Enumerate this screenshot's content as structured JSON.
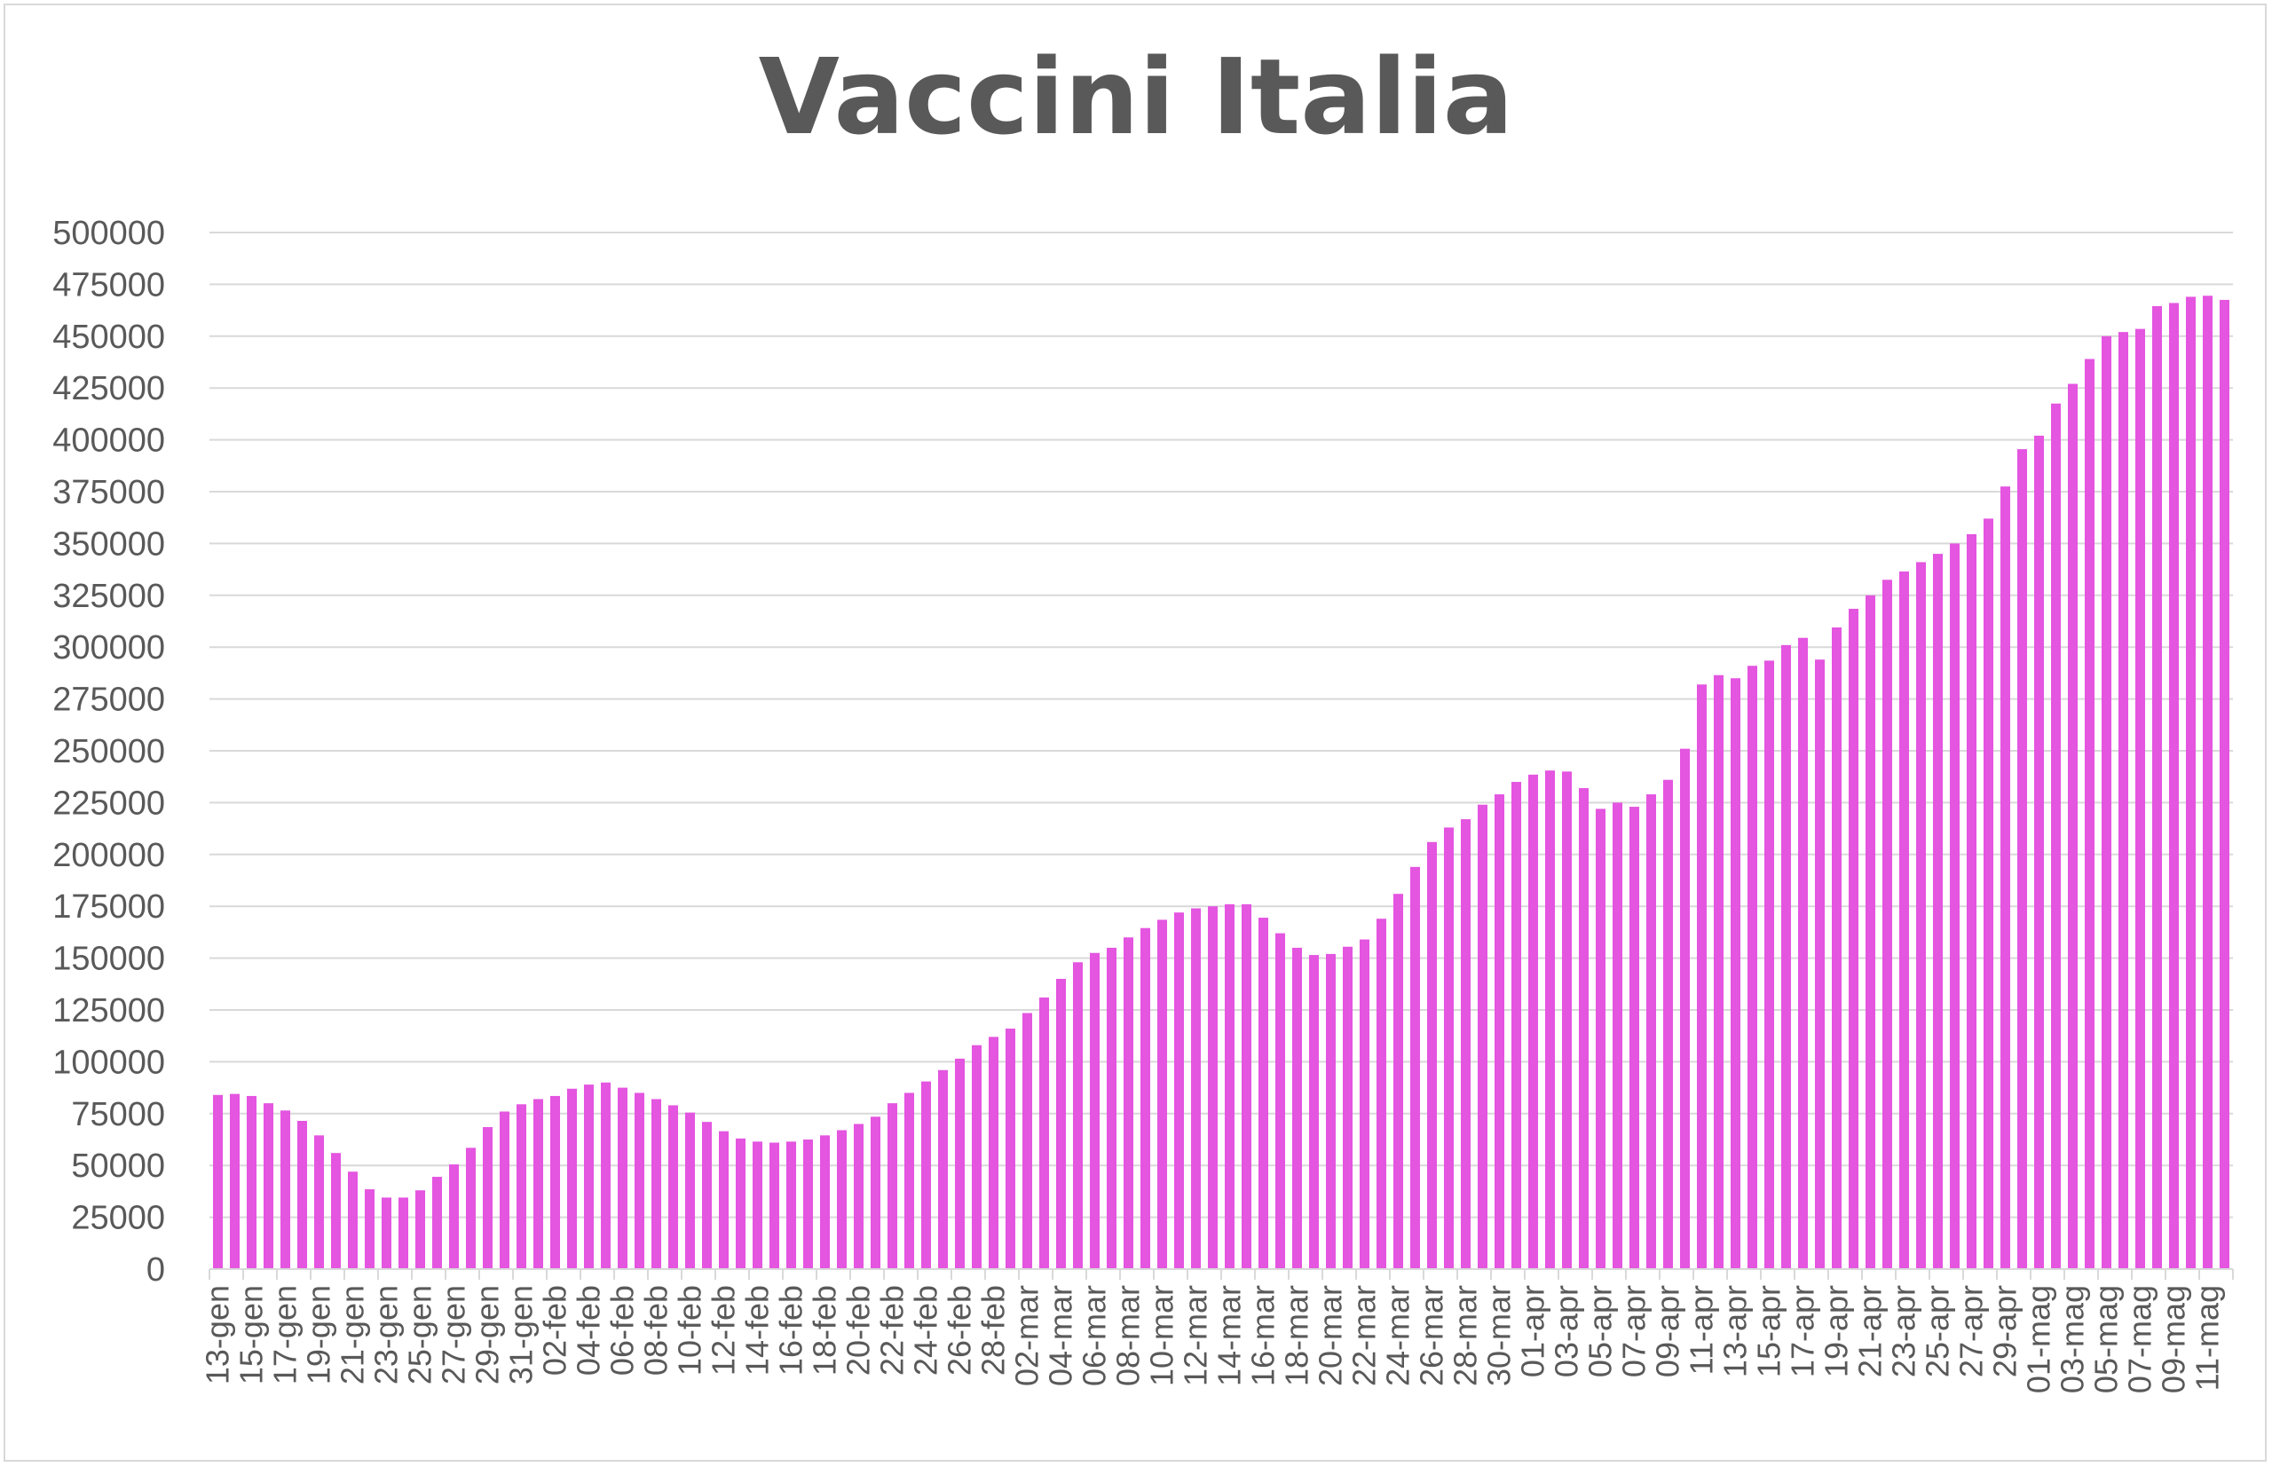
{
  "chart_data": {
    "type": "bar",
    "title": "Vaccini Italia",
    "xlabel": "",
    "ylabel": "",
    "ylim": [
      0,
      500000
    ],
    "yticks": [
      0,
      25000,
      50000,
      75000,
      100000,
      125000,
      150000,
      175000,
      200000,
      225000,
      250000,
      275000,
      300000,
      325000,
      350000,
      375000,
      400000,
      425000,
      450000,
      475000,
      500000
    ],
    "grid": true,
    "legend": "none",
    "bar_color": "#e455e0",
    "categories": [
      "13-gen",
      "14-gen",
      "15-gen",
      "16-gen",
      "17-gen",
      "18-gen",
      "19-gen",
      "20-gen",
      "21-gen",
      "22-gen",
      "23-gen",
      "24-gen",
      "25-gen",
      "26-gen",
      "27-gen",
      "28-gen",
      "29-gen",
      "30-gen",
      "31-gen",
      "01-feb",
      "02-feb",
      "03-feb",
      "04-feb",
      "05-feb",
      "06-feb",
      "07-feb",
      "08-feb",
      "09-feb",
      "10-feb",
      "11-feb",
      "12-feb",
      "13-feb",
      "14-feb",
      "15-feb",
      "16-feb",
      "17-feb",
      "18-feb",
      "19-feb",
      "20-feb",
      "21-feb",
      "22-feb",
      "23-feb",
      "24-feb",
      "25-feb",
      "26-feb",
      "27-feb",
      "28-feb",
      "01-mar",
      "02-mar",
      "03-mar",
      "04-mar",
      "05-mar",
      "06-mar",
      "07-mar",
      "08-mar",
      "09-mar",
      "10-mar",
      "11-mar",
      "12-mar",
      "13-mar",
      "14-mar",
      "15-mar",
      "16-mar",
      "17-mar",
      "18-mar",
      "19-mar",
      "20-mar",
      "21-mar",
      "22-mar",
      "23-mar",
      "24-mar",
      "25-mar",
      "26-mar",
      "27-mar",
      "28-mar",
      "29-mar",
      "30-mar",
      "31-mar",
      "01-apr",
      "02-apr",
      "03-apr",
      "04-apr",
      "05-apr",
      "06-apr",
      "07-apr",
      "08-apr",
      "09-apr",
      "10-apr",
      "11-apr",
      "12-apr",
      "13-apr",
      "14-apr",
      "15-apr",
      "16-apr",
      "17-apr",
      "18-apr",
      "19-apr",
      "20-apr",
      "21-apr",
      "22-apr",
      "23-apr",
      "24-apr",
      "25-apr",
      "26-apr",
      "27-apr",
      "28-apr",
      "29-apr",
      "30-apr",
      "01-mag",
      "02-mag",
      "03-mag",
      "04-mag",
      "05-mag",
      "06-mag",
      "07-mag",
      "08-mag",
      "09-mag",
      "10-mag",
      "11-mag",
      "12-mag"
    ],
    "values": [
      84000,
      84500,
      83500,
      80000,
      76500,
      71500,
      64500,
      56000,
      47000,
      38500,
      34500,
      34500,
      38000,
      44500,
      50500,
      58500,
      68500,
      76000,
      79500,
      82000,
      83500,
      87000,
      89000,
      90000,
      87500,
      85000,
      82000,
      79000,
      75500,
      71000,
      66500,
      63000,
      61500,
      61000,
      61500,
      62500,
      64500,
      67000,
      70000,
      73500,
      80000,
      85000,
      90500,
      96000,
      101500,
      108000,
      112000,
      116000,
      123500,
      131000,
      140000,
      148000,
      152500,
      155000,
      160000,
      164500,
      168500,
      172000,
      174000,
      175000,
      176000,
      176000,
      169500,
      162000,
      155000,
      151500,
      152000,
      155500,
      159000,
      169000,
      181000,
      194000,
      206000,
      213000,
      217000,
      224000,
      229000,
      235000,
      238500,
      240500,
      240000,
      232000,
      222000,
      225000,
      223000,
      229000,
      236000,
      251000,
      282000,
      286500,
      285000,
      291000,
      293500,
      301000,
      304500,
      294000,
      309500,
      318500,
      325000,
      332500,
      336500,
      341000,
      345000,
      350000,
      354500,
      362000,
      377500,
      395500,
      402000,
      417500,
      427000,
      439000,
      450000,
      452000,
      453500,
      464500,
      466000,
      469000,
      469500,
      467500
    ]
  }
}
